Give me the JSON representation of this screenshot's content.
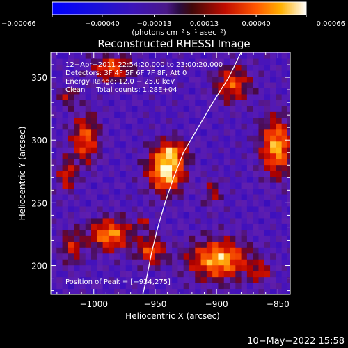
{
  "chart_data": {
    "type": "heatmap",
    "title": "Reconstructed RHESSI Image",
    "xlabel": "Heliocentric X (arcsec)",
    "ylabel": "Heliocentric Y (arcsec)",
    "xlim": [
      -1035,
      -840
    ],
    "ylim": [
      177,
      370
    ],
    "xticks": [
      {
        "value": -1000,
        "label": "−1000"
      },
      {
        "value": -950,
        "label": "−950"
      },
      {
        "value": -900,
        "label": "−900"
      },
      {
        "value": -850,
        "label": "−850"
      }
    ],
    "yticks": [
      {
        "value": 200,
        "label": "200"
      },
      {
        "value": 250,
        "label": "250"
      },
      {
        "value": 300,
        "label": "300"
      },
      {
        "value": 350,
        "label": "350"
      }
    ],
    "colorbar": {
      "min": -0.00066,
      "max": 0.00066,
      "ticks": [
        "−0.00066",
        "−0.00040",
        "−0.00013",
        "0.00013",
        "0.00040",
        "0.00066"
      ],
      "unit_label": "(photons cm⁻² s⁻¹ asec⁻²)"
    },
    "annotations": [
      "12−Apr−2011 22:54:20.000 to 23:00:20.000",
      "Detectors: 3F 4F 5F 6F 7F 8F, Att 0",
      "Energy Range: 12.0 − 25.0 keV",
      "Clean     Total counts: 1.28E+04"
    ],
    "peak_label": "Position of Peak = [−934,275]",
    "peak": [
      -934,
      275
    ],
    "sources": [
      {
        "x": -941,
        "y": 276,
        "amp": 1.0,
        "sx": 10,
        "sy": 12
      },
      {
        "x": -935,
        "y": 292,
        "amp": 0.45,
        "sx": 9,
        "sy": 6
      },
      {
        "x": -1007,
        "y": 301,
        "amp": 0.62,
        "sx": 8,
        "sy": 14
      },
      {
        "x": -1022,
        "y": 272,
        "amp": 0.5,
        "sx": 5,
        "sy": 9
      },
      {
        "x": -1021,
        "y": 335,
        "amp": 0.42,
        "sx": 5,
        "sy": 5
      },
      {
        "x": -985,
        "y": 358,
        "amp": 0.62,
        "sx": 11,
        "sy": 7
      },
      {
        "x": -887,
        "y": 345,
        "amp": 0.6,
        "sx": 10,
        "sy": 10
      },
      {
        "x": -851,
        "y": 295,
        "amp": 0.82,
        "sx": 9,
        "sy": 16
      },
      {
        "x": -903,
        "y": 258,
        "amp": 0.35,
        "sx": 5,
        "sy": 8
      },
      {
        "x": -987,
        "y": 225,
        "amp": 0.75,
        "sx": 12,
        "sy": 9
      },
      {
        "x": -953,
        "y": 212,
        "amp": 0.6,
        "sx": 8,
        "sy": 8
      },
      {
        "x": -898,
        "y": 205,
        "amp": 0.85,
        "sx": 17,
        "sy": 11
      },
      {
        "x": -1018,
        "y": 215,
        "amp": 0.45,
        "sx": 6,
        "sy": 10
      },
      {
        "x": -960,
        "y": 235,
        "amp": 0.35,
        "sx": 4,
        "sy": 4
      },
      {
        "x": -864,
        "y": 195,
        "amp": 0.42,
        "sx": 6,
        "sy": 6
      }
    ],
    "limb_curve": [
      [
        -880,
        370
      ],
      [
        -890,
        350
      ],
      [
        -903,
        330
      ],
      [
        -915,
        310
      ],
      [
        -927,
        290
      ],
      [
        -935,
        270
      ],
      [
        -942,
        250
      ],
      [
        -948,
        230
      ],
      [
        -953,
        210
      ],
      [
        -957,
        190
      ],
      [
        -960,
        177
      ]
    ]
  },
  "footer": {
    "timestamp": "10−May−2022 15:58"
  }
}
